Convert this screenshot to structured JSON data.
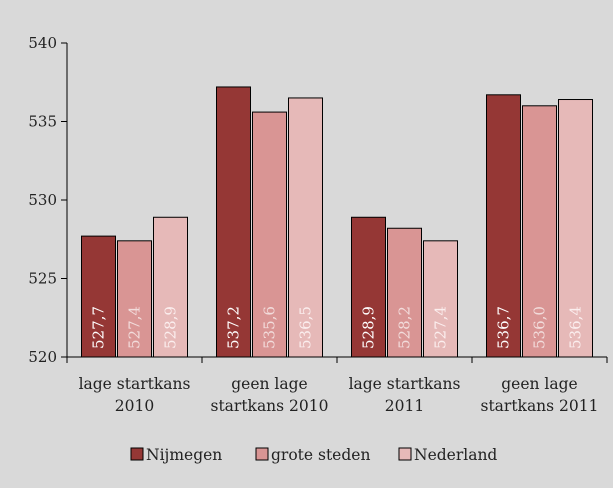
{
  "chart_data": {
    "type": "bar",
    "categories": [
      [
        "lage startkans",
        "2010"
      ],
      [
        "geen lage",
        "startkans 2010"
      ],
      [
        "lage startkans",
        "2011"
      ],
      [
        "geen lage",
        "startkans 2011"
      ]
    ],
    "series": [
      {
        "name": "Nijmegen",
        "values": [
          527.7,
          537.2,
          528.9,
          536.7
        ],
        "labels": [
          "527,7",
          "537,2",
          "528,9",
          "536,7"
        ],
        "color": "#953735",
        "label_color": "#ffffff"
      },
      {
        "name": "grote steden",
        "values": [
          527.4,
          535.6,
          528.2,
          536.0
        ],
        "labels": [
          "527,4",
          "535,6",
          "528,2",
          "536,0"
        ],
        "color": "#d99594",
        "label_color": "#f2dcdb"
      },
      {
        "name": "Nederland",
        "values": [
          528.9,
          536.5,
          527.4,
          536.4
        ],
        "labels": [
          "528,9",
          "536,5",
          "527,4",
          "536,4"
        ],
        "color": "#e6b9b8",
        "label_color": "#fbeeee"
      }
    ],
    "ylim": [
      520,
      540
    ],
    "yticks": [
      "520",
      "525",
      "530",
      "535",
      "540"
    ],
    "ytick_values": [
      520,
      525,
      530,
      535,
      540
    ],
    "grid": false,
    "legend_position": "bottom",
    "background": "#d9d9d9"
  }
}
